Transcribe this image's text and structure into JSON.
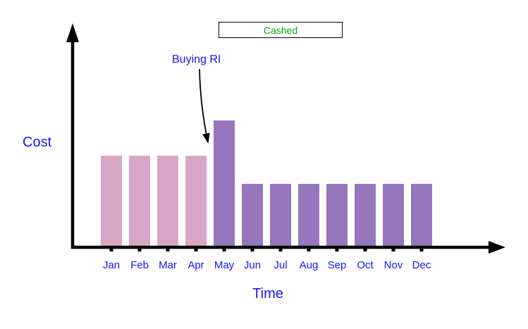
{
  "chart_data": {
    "type": "bar",
    "title": "",
    "xlabel": "Time",
    "ylabel": "Cost",
    "categories": [
      "Jan",
      "Feb",
      "Mar",
      "Apr",
      "May",
      "Jun",
      "Jul",
      "Aug",
      "Sep",
      "Oct",
      "Nov",
      "Dec"
    ],
    "values": [
      72,
      72,
      72,
      72,
      100,
      50,
      50,
      50,
      50,
      50,
      50,
      50
    ],
    "ylim": [
      0,
      110
    ],
    "grid": false,
    "bar_groups": [
      "before_ri",
      "before_ri",
      "before_ri",
      "before_ri",
      "after_ri",
      "after_ri",
      "after_ri",
      "after_ri",
      "after_ri",
      "after_ri",
      "after_ri",
      "after_ri"
    ],
    "series_colors": {
      "before_ri": "#D9A6C6",
      "after_ri": "#9676BC"
    },
    "legend": {
      "label": "Cashed",
      "text_color": "#00AA00",
      "position": "top-center"
    },
    "annotation": {
      "text": "Buying RI",
      "target_category": "May",
      "text_color": "#1414FF"
    }
  },
  "colors": {
    "axis": "#000000",
    "label_blue": "#1414FF",
    "background": "#FFFFFF"
  }
}
